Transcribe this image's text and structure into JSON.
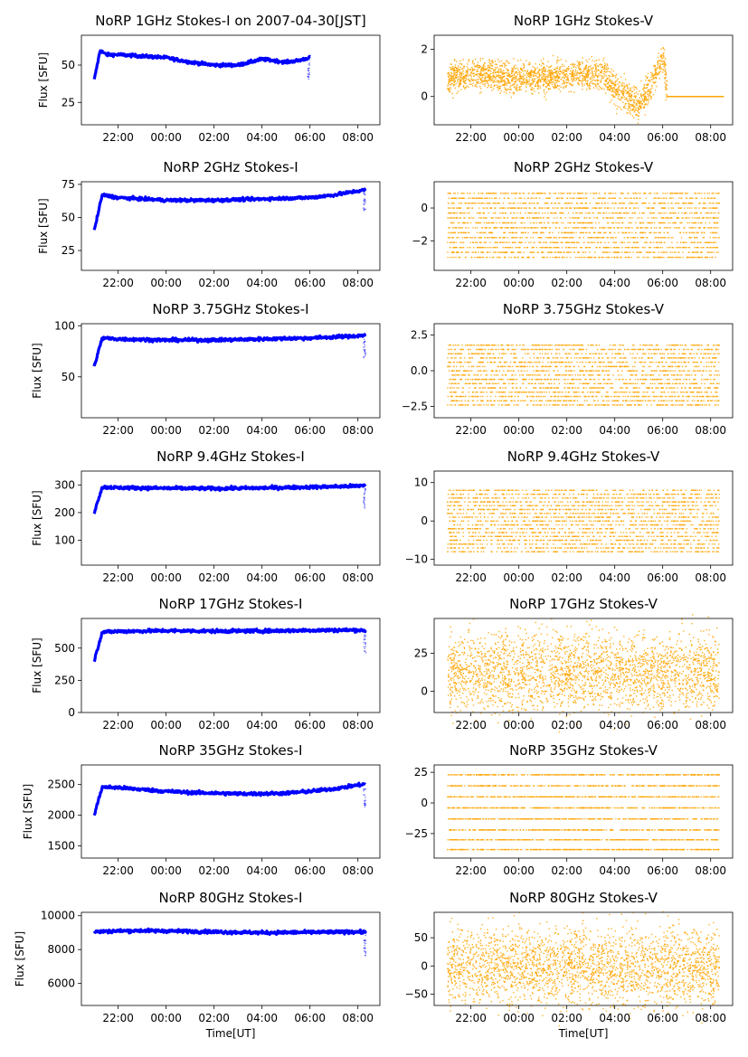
{
  "chart_data": [
    {
      "type": "scatter",
      "title": "NoRP 1GHz Stokes-I on 2007-04-30[JST]",
      "xlabel": "",
      "ylabel": "Flux [SFU]",
      "color": "#0000ff",
      "ylim": [
        10,
        70
      ],
      "yticks": [
        "25",
        "50"
      ],
      "xticks": [
        "22:00",
        "00:00",
        "02:00",
        "04:00",
        "06:00",
        "08:00"
      ],
      "series": [
        {
          "x": [
            "21:00",
            "21:15",
            "21:30",
            "22:00",
            "23:00",
            "00:00",
            "01:00",
            "02:00",
            "03:00",
            "03:30",
            "04:00",
            "04:30",
            "05:00",
            "05:30",
            "06:00"
          ],
          "y": [
            40,
            60,
            57,
            57,
            56,
            55,
            52,
            50,
            50,
            52,
            54,
            53,
            52,
            53,
            55
          ]
        }
      ]
    },
    {
      "type": "scatter",
      "title": "NoRP 1GHz Stokes-V",
      "xlabel": "",
      "ylabel": "",
      "color": "#ffa500",
      "ylim": [
        -1.2,
        2.6
      ],
      "yticks": [
        "0",
        "2"
      ],
      "xticks": [
        "22:00",
        "00:00",
        "02:00",
        "04:00",
        "06:00",
        "08:00"
      ],
      "series": [
        {
          "x": [
            "21:00",
            "22:00",
            "23:00",
            "00:00",
            "01:00",
            "02:00",
            "03:00",
            "03:30",
            "04:00",
            "04:30",
            "05:00",
            "05:30",
            "06:00",
            "06:10",
            "08:30"
          ],
          "y": [
            0.8,
            0.9,
            0.9,
            0.8,
            0.8,
            0.9,
            0.9,
            1.0,
            0.3,
            0.0,
            -0.4,
            0.6,
            1.8,
            0.0,
            0.0
          ]
        }
      ]
    },
    {
      "type": "scatter",
      "title": "NoRP 2GHz Stokes-I",
      "xlabel": "",
      "ylabel": "Flux [SFU]",
      "color": "#0000ff",
      "ylim": [
        10,
        77
      ],
      "yticks": [
        "25",
        "50",
        "75"
      ],
      "xticks": [
        "22:00",
        "00:00",
        "02:00",
        "04:00",
        "06:00",
        "08:00"
      ],
      "series": [
        {
          "x": [
            "21:00",
            "21:20",
            "22:00",
            "00:00",
            "02:00",
            "04:00",
            "06:00",
            "07:00",
            "08:00",
            "08:20"
          ],
          "y": [
            40,
            67,
            65,
            63,
            63,
            64,
            65,
            67,
            70,
            71
          ]
        }
      ]
    },
    {
      "type": "scatter",
      "title": "NoRP 2GHz Stokes-V",
      "xlabel": "",
      "ylabel": "",
      "color": "#ffa500",
      "ylim": [
        -3.8,
        1.6
      ],
      "yticks": [
        "−2",
        "0"
      ],
      "xticks": [
        "22:00",
        "00:00",
        "02:00",
        "04:00",
        "06:00",
        "08:00"
      ],
      "series": [
        {
          "x": [
            "21:00",
            "08:20"
          ],
          "y": [
            -1.3,
            -1.3
          ]
        }
      ]
    },
    {
      "type": "scatter",
      "title": "NoRP 3.75GHz Stokes-I",
      "xlabel": "",
      "ylabel": "Flux [SFU]",
      "color": "#0000ff",
      "ylim": [
        10,
        102
      ],
      "yticks": [
        "50",
        "100"
      ],
      "xticks": [
        "22:00",
        "00:00",
        "02:00",
        "04:00",
        "06:00",
        "08:00"
      ],
      "series": [
        {
          "x": [
            "21:00",
            "21:20",
            "22:00",
            "00:00",
            "02:00",
            "04:00",
            "06:00",
            "08:00",
            "08:20"
          ],
          "y": [
            60,
            88,
            87,
            86,
            86,
            87,
            88,
            90,
            91
          ]
        }
      ]
    },
    {
      "type": "scatter",
      "title": "NoRP 3.75GHz Stokes-V",
      "xlabel": "",
      "ylabel": "",
      "color": "#ffa500",
      "ylim": [
        -3.3,
        3.3
      ],
      "yticks": [
        "−2.5",
        "0.0",
        "2.5"
      ],
      "xticks": [
        "22:00",
        "00:00",
        "02:00",
        "04:00",
        "06:00",
        "08:00"
      ],
      "series": [
        {
          "x": [
            "21:00",
            "08:20"
          ],
          "y": [
            0.0,
            0.0
          ]
        }
      ]
    },
    {
      "type": "scatter",
      "title": "NoRP 9.4GHz Stokes-I",
      "xlabel": "",
      "ylabel": "Flux [SFU]",
      "color": "#0000ff",
      "ylim": [
        10,
        350
      ],
      "yticks": [
        "100",
        "200",
        "300"
      ],
      "xticks": [
        "22:00",
        "00:00",
        "02:00",
        "04:00",
        "06:00",
        "08:00"
      ],
      "series": [
        {
          "x": [
            "21:00",
            "21:20",
            "22:00",
            "00:00",
            "02:00",
            "04:00",
            "06:00",
            "08:00",
            "08:20"
          ],
          "y": [
            200,
            292,
            290,
            288,
            287,
            289,
            292,
            296,
            300
          ]
        }
      ]
    },
    {
      "type": "scatter",
      "title": "NoRP 9.4GHz Stokes-V",
      "xlabel": "",
      "ylabel": "",
      "color": "#ffa500",
      "ylim": [
        -11.5,
        13
      ],
      "yticks": [
        "−10",
        "0",
        "10"
      ],
      "xticks": [
        "22:00",
        "00:00",
        "02:00",
        "04:00",
        "06:00",
        "08:00"
      ],
      "series": [
        {
          "x": [
            "21:00",
            "08:20"
          ],
          "y": [
            0,
            0
          ]
        }
      ]
    },
    {
      "type": "scatter",
      "title": "NoRP 17GHz Stokes-I",
      "xlabel": "",
      "ylabel": "Flux [SFU]",
      "color": "#0000ff",
      "ylim": [
        0,
        730
      ],
      "yticks": [
        "0",
        "250",
        "500"
      ],
      "xticks": [
        "22:00",
        "00:00",
        "02:00",
        "04:00",
        "06:00",
        "08:00"
      ],
      "series": [
        {
          "x": [
            "21:00",
            "21:20",
            "22:00",
            "00:00",
            "02:00",
            "04:00",
            "06:00",
            "08:00",
            "08:20"
          ],
          "y": [
            400,
            625,
            630,
            635,
            632,
            633,
            638,
            640,
            635
          ]
        }
      ]
    },
    {
      "type": "scatter",
      "title": "NoRP 17GHz Stokes-V",
      "xlabel": "",
      "ylabel": "",
      "color": "#ffa500",
      "ylim": [
        -14,
        48
      ],
      "yticks": [
        "0",
        "25"
      ],
      "xticks": [
        "22:00",
        "00:00",
        "02:00",
        "04:00",
        "06:00",
        "08:00"
      ],
      "series": [
        {
          "x": [
            "21:00",
            "08:20"
          ],
          "y": [
            13,
            13
          ]
        }
      ]
    },
    {
      "type": "scatter",
      "title": "NoRP 35GHz Stokes-I",
      "xlabel": "",
      "ylabel": "Flux [SFU]",
      "color": "#0000ff",
      "ylim": [
        1300,
        2820
      ],
      "yticks": [
        "1500",
        "2000",
        "2500"
      ],
      "xticks": [
        "22:00",
        "00:00",
        "02:00",
        "04:00",
        "06:00",
        "08:00"
      ],
      "series": [
        {
          "x": [
            "21:00",
            "21:20",
            "22:00",
            "23:00",
            "00:00",
            "01:00",
            "02:00",
            "03:00",
            "04:00",
            "05:00",
            "06:00",
            "07:00",
            "08:00",
            "08:20"
          ],
          "y": [
            2000,
            2460,
            2450,
            2420,
            2390,
            2370,
            2360,
            2350,
            2350,
            2360,
            2390,
            2430,
            2490,
            2510
          ]
        }
      ]
    },
    {
      "type": "scatter",
      "title": "NoRP 35GHz Stokes-V",
      "xlabel": "",
      "ylabel": "",
      "color": "#ffa500",
      "ylim": [
        -45,
        31
      ],
      "yticks": [
        "−25",
        "0",
        "25"
      ],
      "xticks": [
        "22:00",
        "00:00",
        "02:00",
        "04:00",
        "06:00",
        "08:00"
      ],
      "series": [
        {
          "x": [
            "21:00",
            "08:20"
          ],
          "y": [
            0,
            0
          ]
        }
      ]
    },
    {
      "type": "scatter",
      "title": "NoRP 80GHz Stokes-I",
      "xlabel": "Time[UT]",
      "ylabel": "Flux [SFU]",
      "color": "#0000ff",
      "ylim": [
        4700,
        10200
      ],
      "yticks": [
        "6000",
        "8000",
        "10000"
      ],
      "xticks": [
        "22:00",
        "00:00",
        "02:00",
        "04:00",
        "06:00",
        "08:00"
      ],
      "series": [
        {
          "x": [
            "21:00",
            "22:00",
            "23:00",
            "00:00",
            "01:00",
            "02:00",
            "03:00",
            "04:00",
            "05:00",
            "06:00",
            "07:00",
            "08:00",
            "08:20"
          ],
          "y": [
            9050,
            9100,
            9120,
            9100,
            9080,
            9050,
            9020,
            9000,
            9010,
            9020,
            9030,
            9050,
            9020
          ]
        }
      ]
    },
    {
      "type": "scatter",
      "title": "NoRP 80GHz Stokes-V",
      "xlabel": "Time[UT]",
      "ylabel": "",
      "color": "#ffa500",
      "ylim": [
        -70,
        95
      ],
      "yticks": [
        "−50",
        "0",
        "50"
      ],
      "xticks": [
        "22:00",
        "00:00",
        "02:00",
        "04:00",
        "06:00",
        "08:00"
      ],
      "series": [
        {
          "x": [
            "21:00",
            "08:20"
          ],
          "y": [
            0,
            0
          ]
        }
      ]
    }
  ]
}
